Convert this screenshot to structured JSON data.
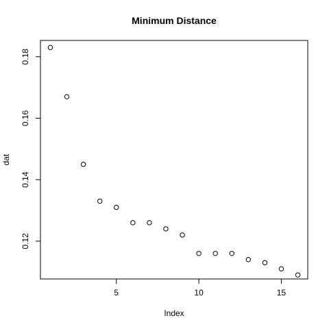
{
  "chart_data": {
    "type": "scatter",
    "title": "Minimum Distance",
    "xlabel": "Index",
    "ylabel": "dat",
    "x": [
      1,
      2,
      3,
      4,
      5,
      6,
      7,
      8,
      9,
      10,
      11,
      12,
      13,
      14,
      15,
      16
    ],
    "y": [
      0.183,
      0.167,
      0.145,
      0.133,
      0.131,
      0.126,
      0.126,
      0.124,
      0.122,
      0.116,
      0.116,
      0.116,
      0.114,
      0.113,
      0.111,
      0.109
    ],
    "xlim": [
      0.4,
      16.6
    ],
    "ylim": [
      0.1077,
      0.1853
    ],
    "xticks": [
      5,
      10,
      15
    ],
    "yticks": [
      0.12,
      0.14,
      0.16,
      0.18
    ],
    "grid": false,
    "legend": "none"
  }
}
